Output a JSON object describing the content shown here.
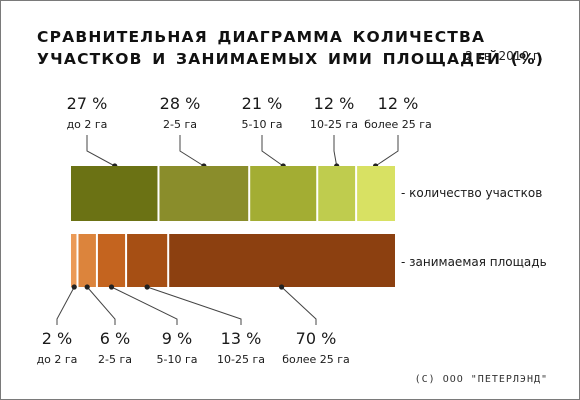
{
  "title": "СРАВНИТЕЛЬНАЯ ДИАГРАММА КОЛИЧЕСТВА УЧАСТКОВ И ЗАНИМАЕМЫХ ИМИ ПЛОЩАДЕЙ (%)",
  "period": "2 кв. 2010 г.",
  "copyright": "(С) ООО \"ПЕТЕРЛЭНД\"",
  "chart_data": {
    "type": "bar",
    "orientation": "horizontal-stacked-100",
    "categories": [
      "до 2 га",
      "2-5 га",
      "5-10 га",
      "10-25 га",
      "более 25 га"
    ],
    "series": [
      {
        "name": "количество участков",
        "legend_label": "-  количество участков",
        "values": [
          27,
          28,
          21,
          12,
          12
        ],
        "value_labels": [
          "27 %",
          "28 %",
          "21 %",
          "12 %",
          "12 %"
        ],
        "colors": [
          "#6b7214",
          "#8a8d2b",
          "#a3ad33",
          "#bfcc4e",
          "#d8e163"
        ]
      },
      {
        "name": "занимаемая площадь",
        "legend_label": "-  занимаемая площадь",
        "values": [
          2,
          6,
          9,
          13,
          70
        ],
        "value_labels": [
          "2 %",
          "6 %",
          "9 %",
          "13 %",
          "70 %"
        ],
        "colors": [
          "#eb9a57",
          "#dc843c",
          "#c4641f",
          "#a64f14",
          "#8c4010"
        ]
      }
    ]
  }
}
